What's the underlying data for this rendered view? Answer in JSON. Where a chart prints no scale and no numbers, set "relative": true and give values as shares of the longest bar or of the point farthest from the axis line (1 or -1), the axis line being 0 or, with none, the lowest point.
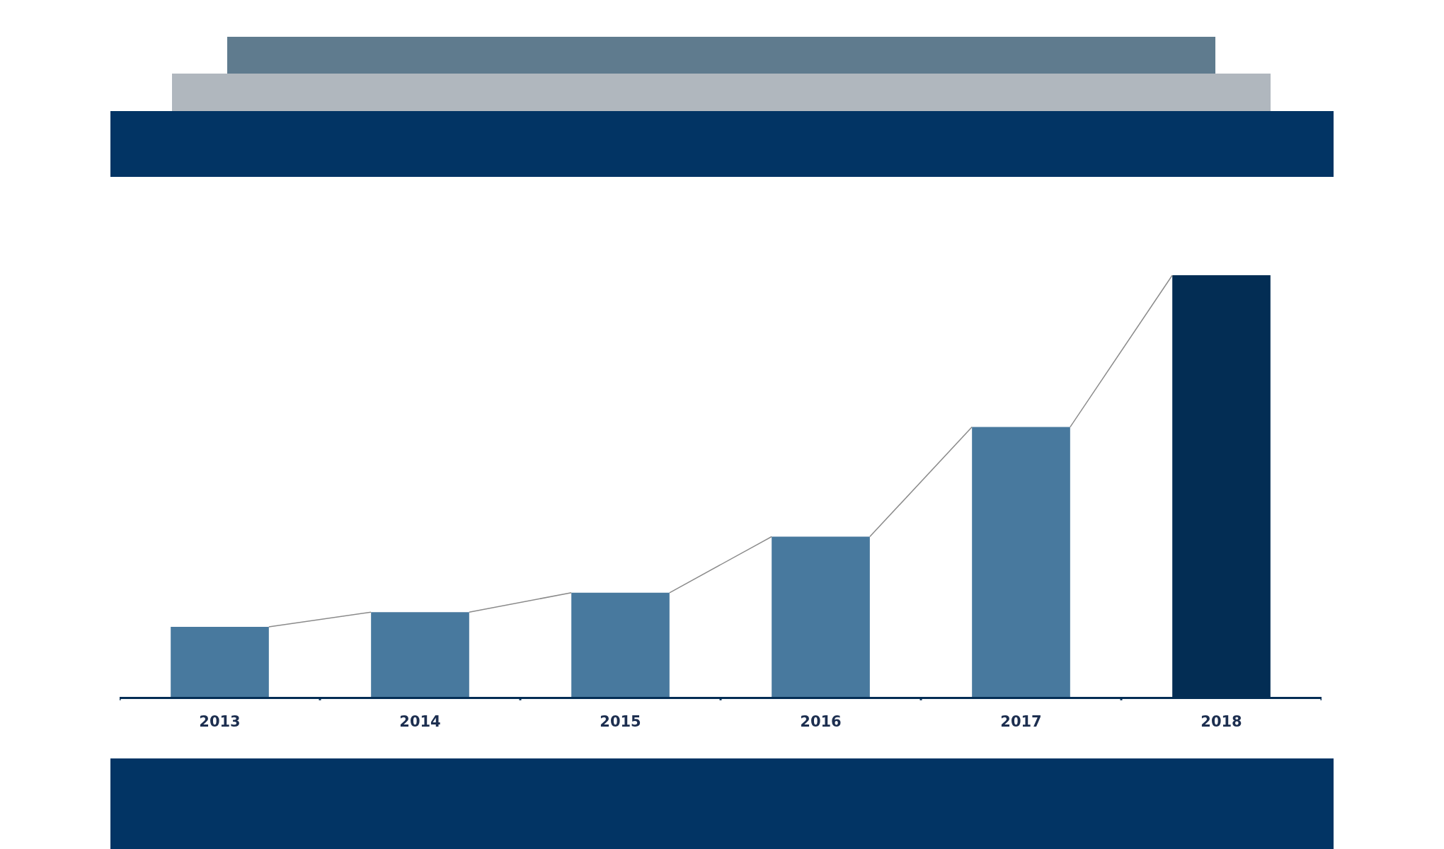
{
  "chart_data": {
    "type": "bar",
    "relative": true,
    "categories": [
      "2013",
      "2014",
      "2015",
      "2016",
      "2017",
      "2018"
    ],
    "values": [
      0.166,
      0.201,
      0.247,
      0.38,
      0.64,
      1
    ],
    "colors": [
      "#48799e",
      "#48799e",
      "#48799e",
      "#48799e",
      "#48799e",
      "#032d54"
    ]
  }
}
